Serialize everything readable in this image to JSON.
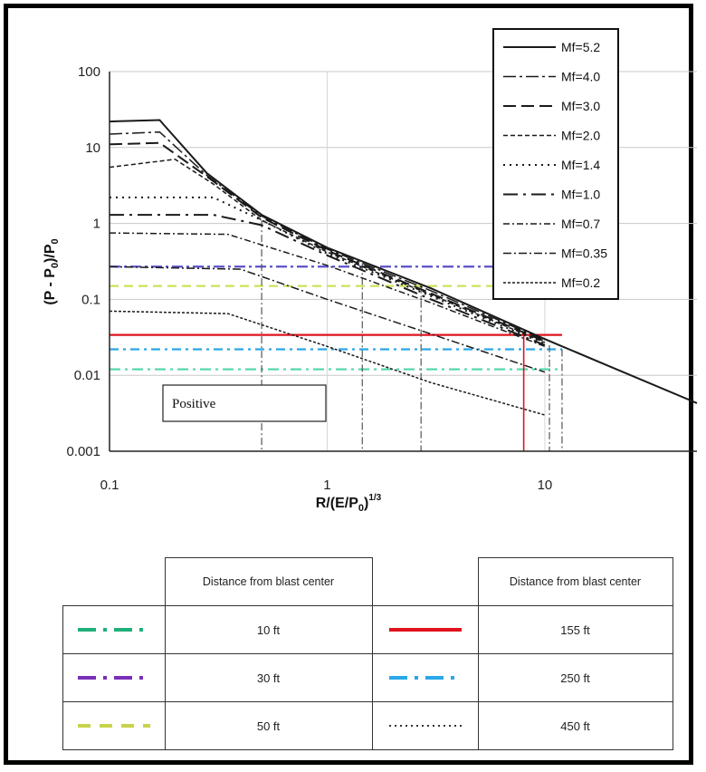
{
  "chart_data": {
    "type": "line",
    "xlabel_main": "R/(E/P",
    "xlabel_sub": "0",
    "xlabel_tail": ")",
    "xlabel_sup": "1/3",
    "ylabel_main": "(P - P",
    "ylabel_sub": "0",
    "ylabel_mid": ")/P",
    "ylabel_sub2": "0",
    "x_scale": "log",
    "y_scale": "log",
    "xlim": [
      0.1,
      50
    ],
    "ylim": [
      0.001,
      100
    ],
    "x_ticks": [
      {
        "v": 0.1,
        "label": "0.1"
      },
      {
        "v": 1,
        "label": "1"
      },
      {
        "v": 10,
        "label": "10"
      }
    ],
    "y_ticks": [
      {
        "v": 100,
        "label": "100"
      },
      {
        "v": 10,
        "label": "10"
      },
      {
        "v": 1,
        "label": "1"
      },
      {
        "v": 0.1,
        "label": "0.1"
      },
      {
        "v": 0.01,
        "label": "0.01"
      },
      {
        "v": 0.001,
        "label": "0.001"
      }
    ],
    "annotation": "Positive",
    "legend_position": "top-right",
    "series": [
      {
        "name": "Mf=5.2",
        "dash": "none",
        "width": 2,
        "points": [
          [
            0.1,
            22
          ],
          [
            0.17,
            23
          ],
          [
            0.18,
            19
          ],
          [
            0.28,
            4.6
          ],
          [
            0.5,
            1.3
          ],
          [
            1,
            0.48
          ],
          [
            3,
            0.14
          ],
          [
            10,
            0.03
          ],
          [
            20,
            0.013
          ],
          [
            50,
            0.0043
          ]
        ]
      },
      {
        "name": "Mf=4.0",
        "dash": "14 4 3 4",
        "width": 1.5,
        "points": [
          [
            0.1,
            15
          ],
          [
            0.17,
            16
          ],
          [
            0.28,
            4.3
          ],
          [
            0.5,
            1.25
          ],
          [
            1,
            0.46
          ],
          [
            3,
            0.13
          ],
          [
            10,
            0.029
          ]
        ]
      },
      {
        "name": "Mf=3.0",
        "dash": "14 6",
        "width": 2,
        "points": [
          [
            0.1,
            11
          ],
          [
            0.17,
            11.5
          ],
          [
            0.3,
            3.6
          ],
          [
            0.5,
            1.2
          ],
          [
            1,
            0.44
          ],
          [
            3,
            0.12
          ],
          [
            10,
            0.028
          ]
        ]
      },
      {
        "name": "Mf=2.0",
        "dash": "5 3",
        "width": 1.5,
        "points": [
          [
            0.1,
            5.5
          ],
          [
            0.2,
            7
          ],
          [
            0.3,
            3.3
          ],
          [
            0.5,
            1.1
          ],
          [
            1,
            0.42
          ],
          [
            3,
            0.115
          ],
          [
            10,
            0.027
          ]
        ]
      },
      {
        "name": "Mf=1.4",
        "dash": "2 5",
        "width": 2,
        "points": [
          [
            0.1,
            2.2
          ],
          [
            0.3,
            2.2
          ],
          [
            0.5,
            1.1
          ],
          [
            1,
            0.4
          ],
          [
            3,
            0.11
          ],
          [
            10,
            0.026
          ]
        ]
      },
      {
        "name": "Mf=1.0",
        "dash": "16 6 3 6",
        "width": 2,
        "points": [
          [
            0.1,
            1.3
          ],
          [
            0.3,
            1.3
          ],
          [
            0.5,
            0.95
          ],
          [
            1,
            0.38
          ],
          [
            3,
            0.1
          ],
          [
            10,
            0.025
          ]
        ]
      },
      {
        "name": "Mf=0.7",
        "dash": "7 3 2 3",
        "width": 1.5,
        "points": [
          [
            0.1,
            0.75
          ],
          [
            0.35,
            0.72
          ],
          [
            1,
            0.28
          ],
          [
            3,
            0.09
          ],
          [
            10,
            0.024
          ]
        ]
      },
      {
        "name": "Mf=0.35",
        "dash": "9 3 2 3",
        "width": 1.5,
        "points": [
          [
            0.1,
            0.27
          ],
          [
            0.4,
            0.25
          ],
          [
            1,
            0.1
          ],
          [
            3,
            0.035
          ],
          [
            10,
            0.011
          ]
        ]
      },
      {
        "name": "Mf=0.2",
        "dash": "3 2",
        "width": 1.5,
        "points": [
          [
            0.1,
            0.07
          ],
          [
            0.35,
            0.065
          ],
          [
            1,
            0.024
          ],
          [
            3,
            0.008
          ],
          [
            10,
            0.003
          ]
        ]
      }
    ],
    "reference_lines": [
      {
        "y": 0.15,
        "color": "#cfe05a",
        "dash": "10 6"
      },
      {
        "y": 0.27,
        "color": "#5a50c8",
        "dash": "12 4 3 4"
      },
      {
        "y": 0.012,
        "color": "#4fd6a8",
        "dash": "12 5 3 5"
      },
      {
        "y": 0.034,
        "color": "#e0141e",
        "dash": "none"
      },
      {
        "y": 0.022,
        "color": "#2aa7e8",
        "dash": "10 5 3 5"
      }
    ],
    "vertical_lines": [
      {
        "x": 0.5,
        "y_top": 1.1
      },
      {
        "x": 1.45,
        "y_top": 0.3
      },
      {
        "x": 2.7,
        "y_top": 0.15
      },
      {
        "x": 8,
        "y_top": 0.034,
        "color": "#e0141e"
      },
      {
        "x": 10.5,
        "y_top": 0.025
      },
      {
        "x": 12,
        "y_top": 0.022
      }
    ]
  },
  "legend_table": {
    "header": "Distance from blast center",
    "rows": [
      {
        "left_distance": "10 ft",
        "left_color": "#1fb07a",
        "left_style": "dash-dot",
        "right_distance": "155 ft",
        "right_color": "#e0141e",
        "right_style": "solid"
      },
      {
        "left_distance": "30 ft",
        "left_color": "#7a2fb8",
        "left_style": "dash-dot",
        "right_distance": "250 ft",
        "right_color": "#2aa7e8",
        "right_style": "dash-dot"
      },
      {
        "left_distance": "50 ft",
        "left_color": "#c8d34a",
        "left_style": "dashed",
        "right_distance": "450 ft",
        "right_color": "#333333",
        "right_style": "dotted"
      }
    ]
  }
}
